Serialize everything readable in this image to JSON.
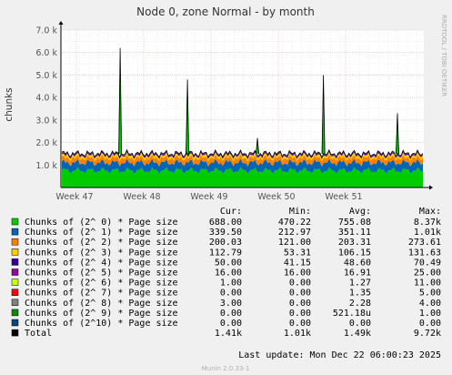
{
  "chart_data": {
    "type": "area",
    "title": "Node 0, zone Normal - by month",
    "ylabel": "chunks",
    "xlabel": "",
    "ylim": [
      0,
      7000
    ],
    "y_ticks": [
      1000,
      2000,
      3000,
      4000,
      5000,
      6000,
      7000
    ],
    "y_tick_labels": [
      "1.0 k",
      "2.0 k",
      "3.0 k",
      "4.0 k",
      "5.0 k",
      "6.0 k",
      "7.0 k"
    ],
    "x_tick_labels": [
      "Week 47",
      "Week 48",
      "Week 49",
      "Week 50",
      "Week 51"
    ],
    "grid": true,
    "legend_placement": "bottom",
    "side_label": "RRDTOOL / TOBI OETIKER",
    "stacked": true,
    "series": [
      {
        "name": "Chunks of (2^ 0) * Page size",
        "color": "#00cc00",
        "cur": "688.00",
        "min": "470.22",
        "avg": "755.08",
        "max": "8.37k",
        "mean": 755.08
      },
      {
        "name": "Chunks of (2^ 1) * Page size",
        "color": "#0066b3",
        "cur": "339.50",
        "min": "212.97",
        "avg": "351.11",
        "max": "1.01k",
        "mean": 351.11
      },
      {
        "name": "Chunks of (2^ 2) * Page size",
        "color": "#ff8000",
        "cur": "200.03",
        "min": "121.00",
        "avg": "203.31",
        "max": "273.61",
        "mean": 203.31
      },
      {
        "name": "Chunks of (2^ 3) * Page size",
        "color": "#ffcc00",
        "cur": "112.79",
        "min": "53.31",
        "avg": "106.15",
        "max": "131.63",
        "mean": 106.15
      },
      {
        "name": "Chunks of (2^ 4) * Page size",
        "color": "#330099",
        "cur": "50.00",
        "min": "41.15",
        "avg": "48.60",
        "max": "70.49",
        "mean": 48.6
      },
      {
        "name": "Chunks of (2^ 5) * Page size",
        "color": "#990099",
        "cur": "16.00",
        "min": "16.00",
        "avg": "16.91",
        "max": "25.00",
        "mean": 16.91
      },
      {
        "name": "Chunks of (2^ 6) * Page size",
        "color": "#ccff00",
        "cur": "1.00",
        "min": "0.00",
        "avg": "1.27",
        "max": "11.00",
        "mean": 1.27
      },
      {
        "name": "Chunks of (2^ 7) * Page size",
        "color": "#ff0000",
        "cur": "0.00",
        "min": "0.00",
        "avg": "1.35",
        "max": "5.00",
        "mean": 1.35
      },
      {
        "name": "Chunks of (2^ 8) * Page size",
        "color": "#808080",
        "cur": "3.00",
        "min": "0.00",
        "avg": "2.28",
        "max": "4.00",
        "mean": 2.28
      },
      {
        "name": "Chunks of (2^ 9) * Page size",
        "color": "#008f00",
        "cur": "0.00",
        "min": "0.00",
        "avg": "521.18u",
        "max": "1.00",
        "mean": 0.0005
      },
      {
        "name": "Chunks of (2^10) * Page size",
        "color": "#00487d",
        "cur": "0.00",
        "min": "0.00",
        "avg": "0.00",
        "max": "0.00",
        "mean": 0
      },
      {
        "name": "Total",
        "color": "#000000",
        "cur": "1.41k",
        "min": "1.01k",
        "avg": "1.49k",
        "max": "9.72k",
        "mean": 1490
      }
    ],
    "spikes": [
      {
        "x_week": 47.68,
        "value": 6200
      },
      {
        "x_week": 48.68,
        "value": 4800
      },
      {
        "x_week": 49.72,
        "value": 2200
      },
      {
        "x_week": 50.7,
        "value": 5000
      },
      {
        "x_week": 51.8,
        "value": 3300
      }
    ]
  },
  "legend_headers": {
    "cur": "Cur:",
    "min": "Min:",
    "avg": "Avg:",
    "max": "Max:"
  },
  "last_update": "Last update:  Mon Dec 22 06:00:23 2025",
  "footer": "Munin 2.0.33-1"
}
